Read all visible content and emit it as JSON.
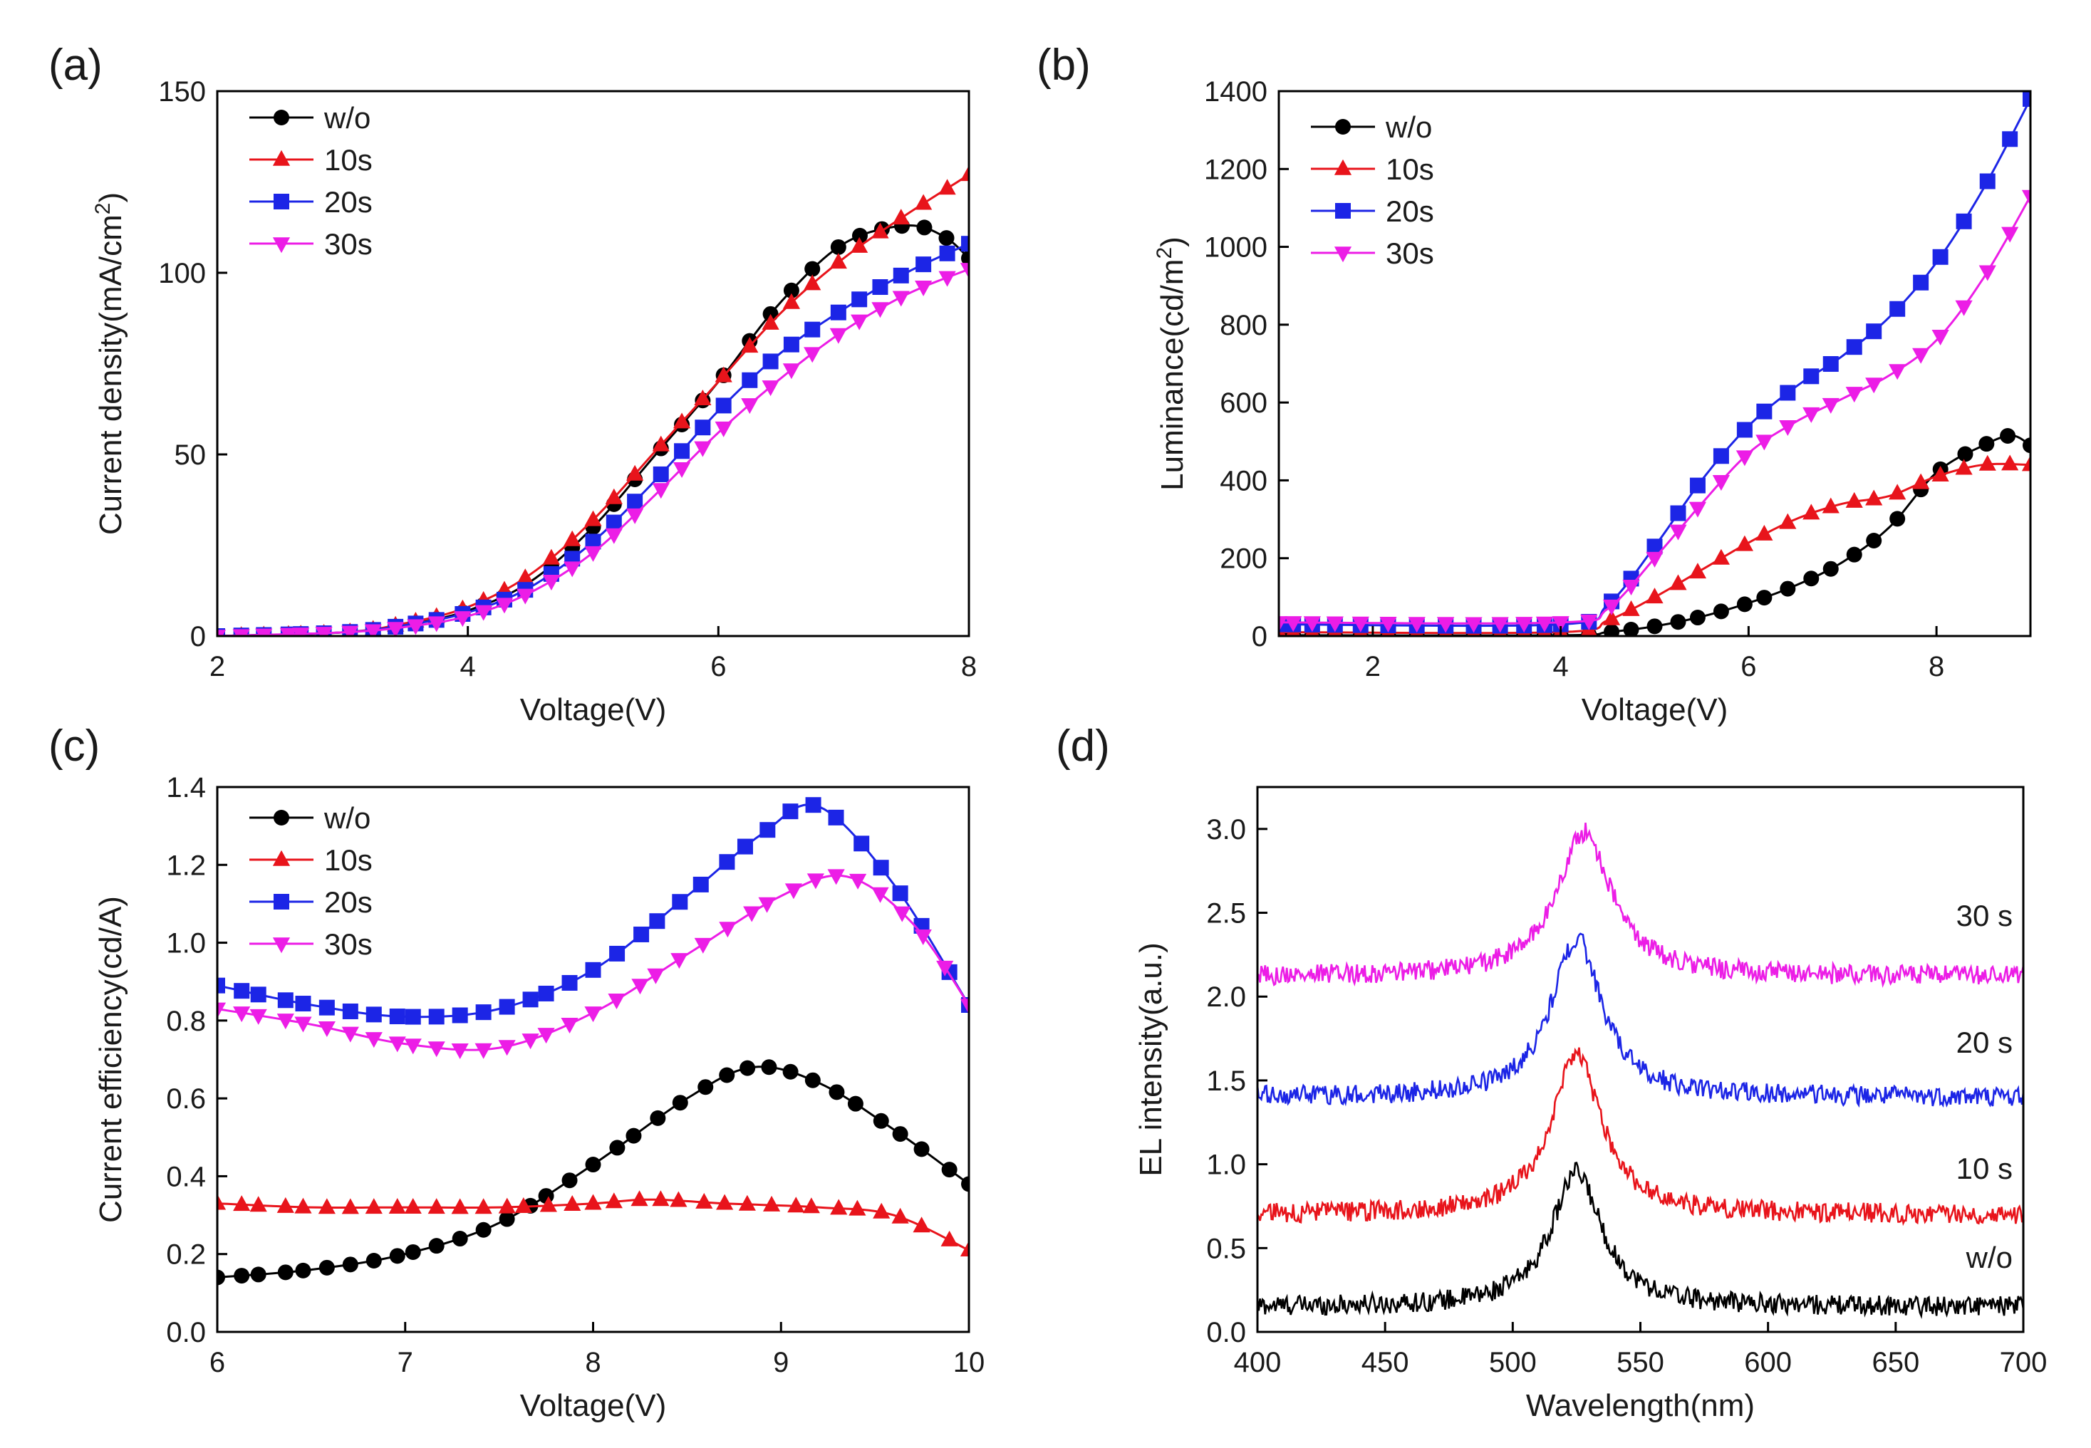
{
  "chart_data": [
    {
      "panel": "(a)",
      "type": "line",
      "xlabel": "Voltage(V)",
      "ylabel": "Current density(mA/cm",
      "ylabel_sup": "2",
      "ylabel_suffix": ")",
      "xlim": [
        2,
        8
      ],
      "ylim": [
        0,
        150
      ],
      "xticks": [
        2,
        4,
        6,
        8
      ],
      "yticks": [
        0,
        50,
        100,
        150
      ],
      "legend_position": "top-left",
      "series": [
        {
          "name": "w/o",
          "color": "#000000",
          "marker": "circle",
          "x": [
            2,
            3,
            3.5,
            4,
            4.5,
            5,
            5.5,
            6,
            6.5,
            7,
            7.5,
            7.8,
            8
          ],
          "y": [
            0,
            1,
            3,
            7,
            15,
            30,
            50,
            70,
            92,
            108,
            113,
            110,
            104
          ]
        },
        {
          "name": "10s",
          "color": "#e8141b",
          "marker": "triangle-up",
          "x": [
            2,
            3,
            3.5,
            4,
            4.5,
            5,
            5.5,
            6,
            6.5,
            7,
            7.5,
            8
          ],
          "y": [
            0,
            1,
            3.5,
            8,
            17,
            32,
            51,
            70,
            89,
            104,
            116,
            127
          ]
        },
        {
          "name": "20s",
          "color": "#1c25e6",
          "marker": "square",
          "x": [
            2,
            3,
            3.5,
            4,
            4.5,
            5,
            5.5,
            6,
            6.5,
            7,
            7.5,
            8
          ],
          "y": [
            0,
            1,
            3,
            6.5,
            13.5,
            26,
            43,
            62,
            78,
            90,
            100,
            108
          ]
        },
        {
          "name": "30s",
          "color": "#ec1de6",
          "marker": "triangle-down",
          "x": [
            2,
            3,
            3.5,
            4,
            4.5,
            5,
            5.5,
            6,
            6.5,
            7,
            7.5,
            8
          ],
          "y": [
            0,
            1,
            2.5,
            5.5,
            12,
            23,
            39,
            56,
            71,
            84,
            94,
            101
          ]
        }
      ]
    },
    {
      "panel": "(b)",
      "type": "line",
      "xlabel": "Voltage(V)",
      "ylabel": "Luminance(cd/m",
      "ylabel_sup": "2",
      "ylabel_suffix": ")",
      "xlim": [
        1,
        9
      ],
      "ylim": [
        0,
        1400
      ],
      "xticks": [
        2,
        4,
        6,
        8
      ],
      "yticks": [
        0,
        200,
        400,
        600,
        800,
        1000,
        1200,
        1400
      ],
      "legend_position": "top-left",
      "series": [
        {
          "name": "w/o",
          "color": "#000000",
          "marker": "circle",
          "x": [
            1,
            4,
            4.5,
            5,
            5.5,
            6,
            6.5,
            7,
            7.5,
            8,
            8.5,
            8.8,
            9
          ],
          "y": [
            2,
            2,
            10,
            25,
            50,
            85,
            130,
            190,
            280,
            420,
            490,
            515,
            490
          ]
        },
        {
          "name": "10s",
          "color": "#e8141b",
          "marker": "triangle-up",
          "x": [
            1,
            4,
            4.5,
            5,
            5.5,
            6,
            6.5,
            7,
            7.5,
            8,
            8.5,
            9
          ],
          "y": [
            10,
            10,
            40,
            100,
            170,
            240,
            300,
            340,
            360,
            410,
            440,
            440
          ]
        },
        {
          "name": "20s",
          "color": "#1c25e6",
          "marker": "square",
          "x": [
            1,
            4,
            4.5,
            5,
            5.5,
            6,
            6.5,
            7,
            7.5,
            8,
            8.5,
            9
          ],
          "y": [
            30,
            30,
            80,
            230,
            400,
            540,
            640,
            720,
            820,
            960,
            1150,
            1380
          ]
        },
        {
          "name": "30s",
          "color": "#ec1de6",
          "marker": "triangle-down",
          "x": [
            1,
            4,
            4.5,
            5,
            5.5,
            6,
            6.5,
            7,
            7.5,
            8,
            8.5,
            9
          ],
          "y": [
            35,
            35,
            70,
            200,
            340,
            470,
            550,
            610,
            670,
            760,
            920,
            1130
          ]
        }
      ]
    },
    {
      "panel": "(c)",
      "type": "line",
      "xlabel": "Voltage(V)",
      "ylabel": "Current efficiency(cd/A)",
      "xlim": [
        6,
        10
      ],
      "ylim": [
        0,
        1.4
      ],
      "xticks": [
        6,
        7,
        8,
        9,
        10
      ],
      "yticks": [
        0.0,
        0.2,
        0.4,
        0.6,
        0.8,
        1.0,
        1.2,
        1.4
      ],
      "legend_position": "top-left",
      "series": [
        {
          "name": "w/o",
          "color": "#000000",
          "marker": "circle",
          "x": [
            6,
            6.5,
            7,
            7.5,
            8,
            8.5,
            8.85,
            9.2,
            9.6,
            10
          ],
          "y": [
            0.14,
            0.16,
            0.2,
            0.28,
            0.43,
            0.6,
            0.68,
            0.64,
            0.52,
            0.38
          ]
        },
        {
          "name": "10s",
          "color": "#e8141b",
          "marker": "triangle-up",
          "x": [
            6,
            6.5,
            7,
            7.5,
            8,
            8.3,
            8.7,
            9.2,
            9.6,
            10
          ],
          "y": [
            0.33,
            0.32,
            0.32,
            0.32,
            0.33,
            0.34,
            0.33,
            0.32,
            0.3,
            0.21
          ]
        },
        {
          "name": "20s",
          "color": "#1c25e6",
          "marker": "square",
          "x": [
            6,
            6.5,
            7,
            7.5,
            8,
            8.5,
            8.9,
            9.2,
            9.6,
            10
          ],
          "y": [
            0.89,
            0.84,
            0.81,
            0.83,
            0.93,
            1.12,
            1.28,
            1.35,
            1.15,
            0.84
          ]
        },
        {
          "name": "30s",
          "color": "#ec1de6",
          "marker": "triangle-down",
          "x": [
            6,
            6.5,
            7,
            7.5,
            8,
            8.5,
            9,
            9.35,
            9.7,
            10
          ],
          "y": [
            0.83,
            0.79,
            0.74,
            0.73,
            0.82,
            0.97,
            1.12,
            1.17,
            1.05,
            0.84
          ]
        }
      ]
    },
    {
      "panel": "(d)",
      "type": "line",
      "xlabel": "Wavelength(nm)",
      "ylabel": "EL intensity(a.u.)",
      "xlim": [
        400,
        700
      ],
      "ylim": [
        0,
        3.25
      ],
      "xticks": [
        400,
        450,
        500,
        550,
        600,
        650,
        700
      ],
      "yticks": [
        0.0,
        0.5,
        1.0,
        1.5,
        2.0,
        2.5,
        3.0
      ],
      "series": [
        {
          "name": "w/o",
          "label": "w/o",
          "color": "#000000",
          "baseline": 0.15,
          "peak_x": 525,
          "peak_y": 0.95,
          "width": 12
        },
        {
          "name": "10 s",
          "label": "10 s",
          "color": "#e8141b",
          "baseline": 0.7,
          "peak_x": 525,
          "peak_y": 1.65,
          "width": 12
        },
        {
          "name": "20 s",
          "label": "20 s",
          "color": "#1c25e6",
          "baseline": 1.4,
          "peak_x": 525,
          "peak_y": 2.35,
          "width": 12
        },
        {
          "name": "30 s",
          "label": "30 s",
          "color": "#ec1de6",
          "baseline": 2.12,
          "peak_x": 528,
          "peak_y": 2.98,
          "width": 13
        }
      ],
      "annotations": [
        "30 s",
        "20 s",
        "10 s",
        "w/o"
      ]
    }
  ]
}
